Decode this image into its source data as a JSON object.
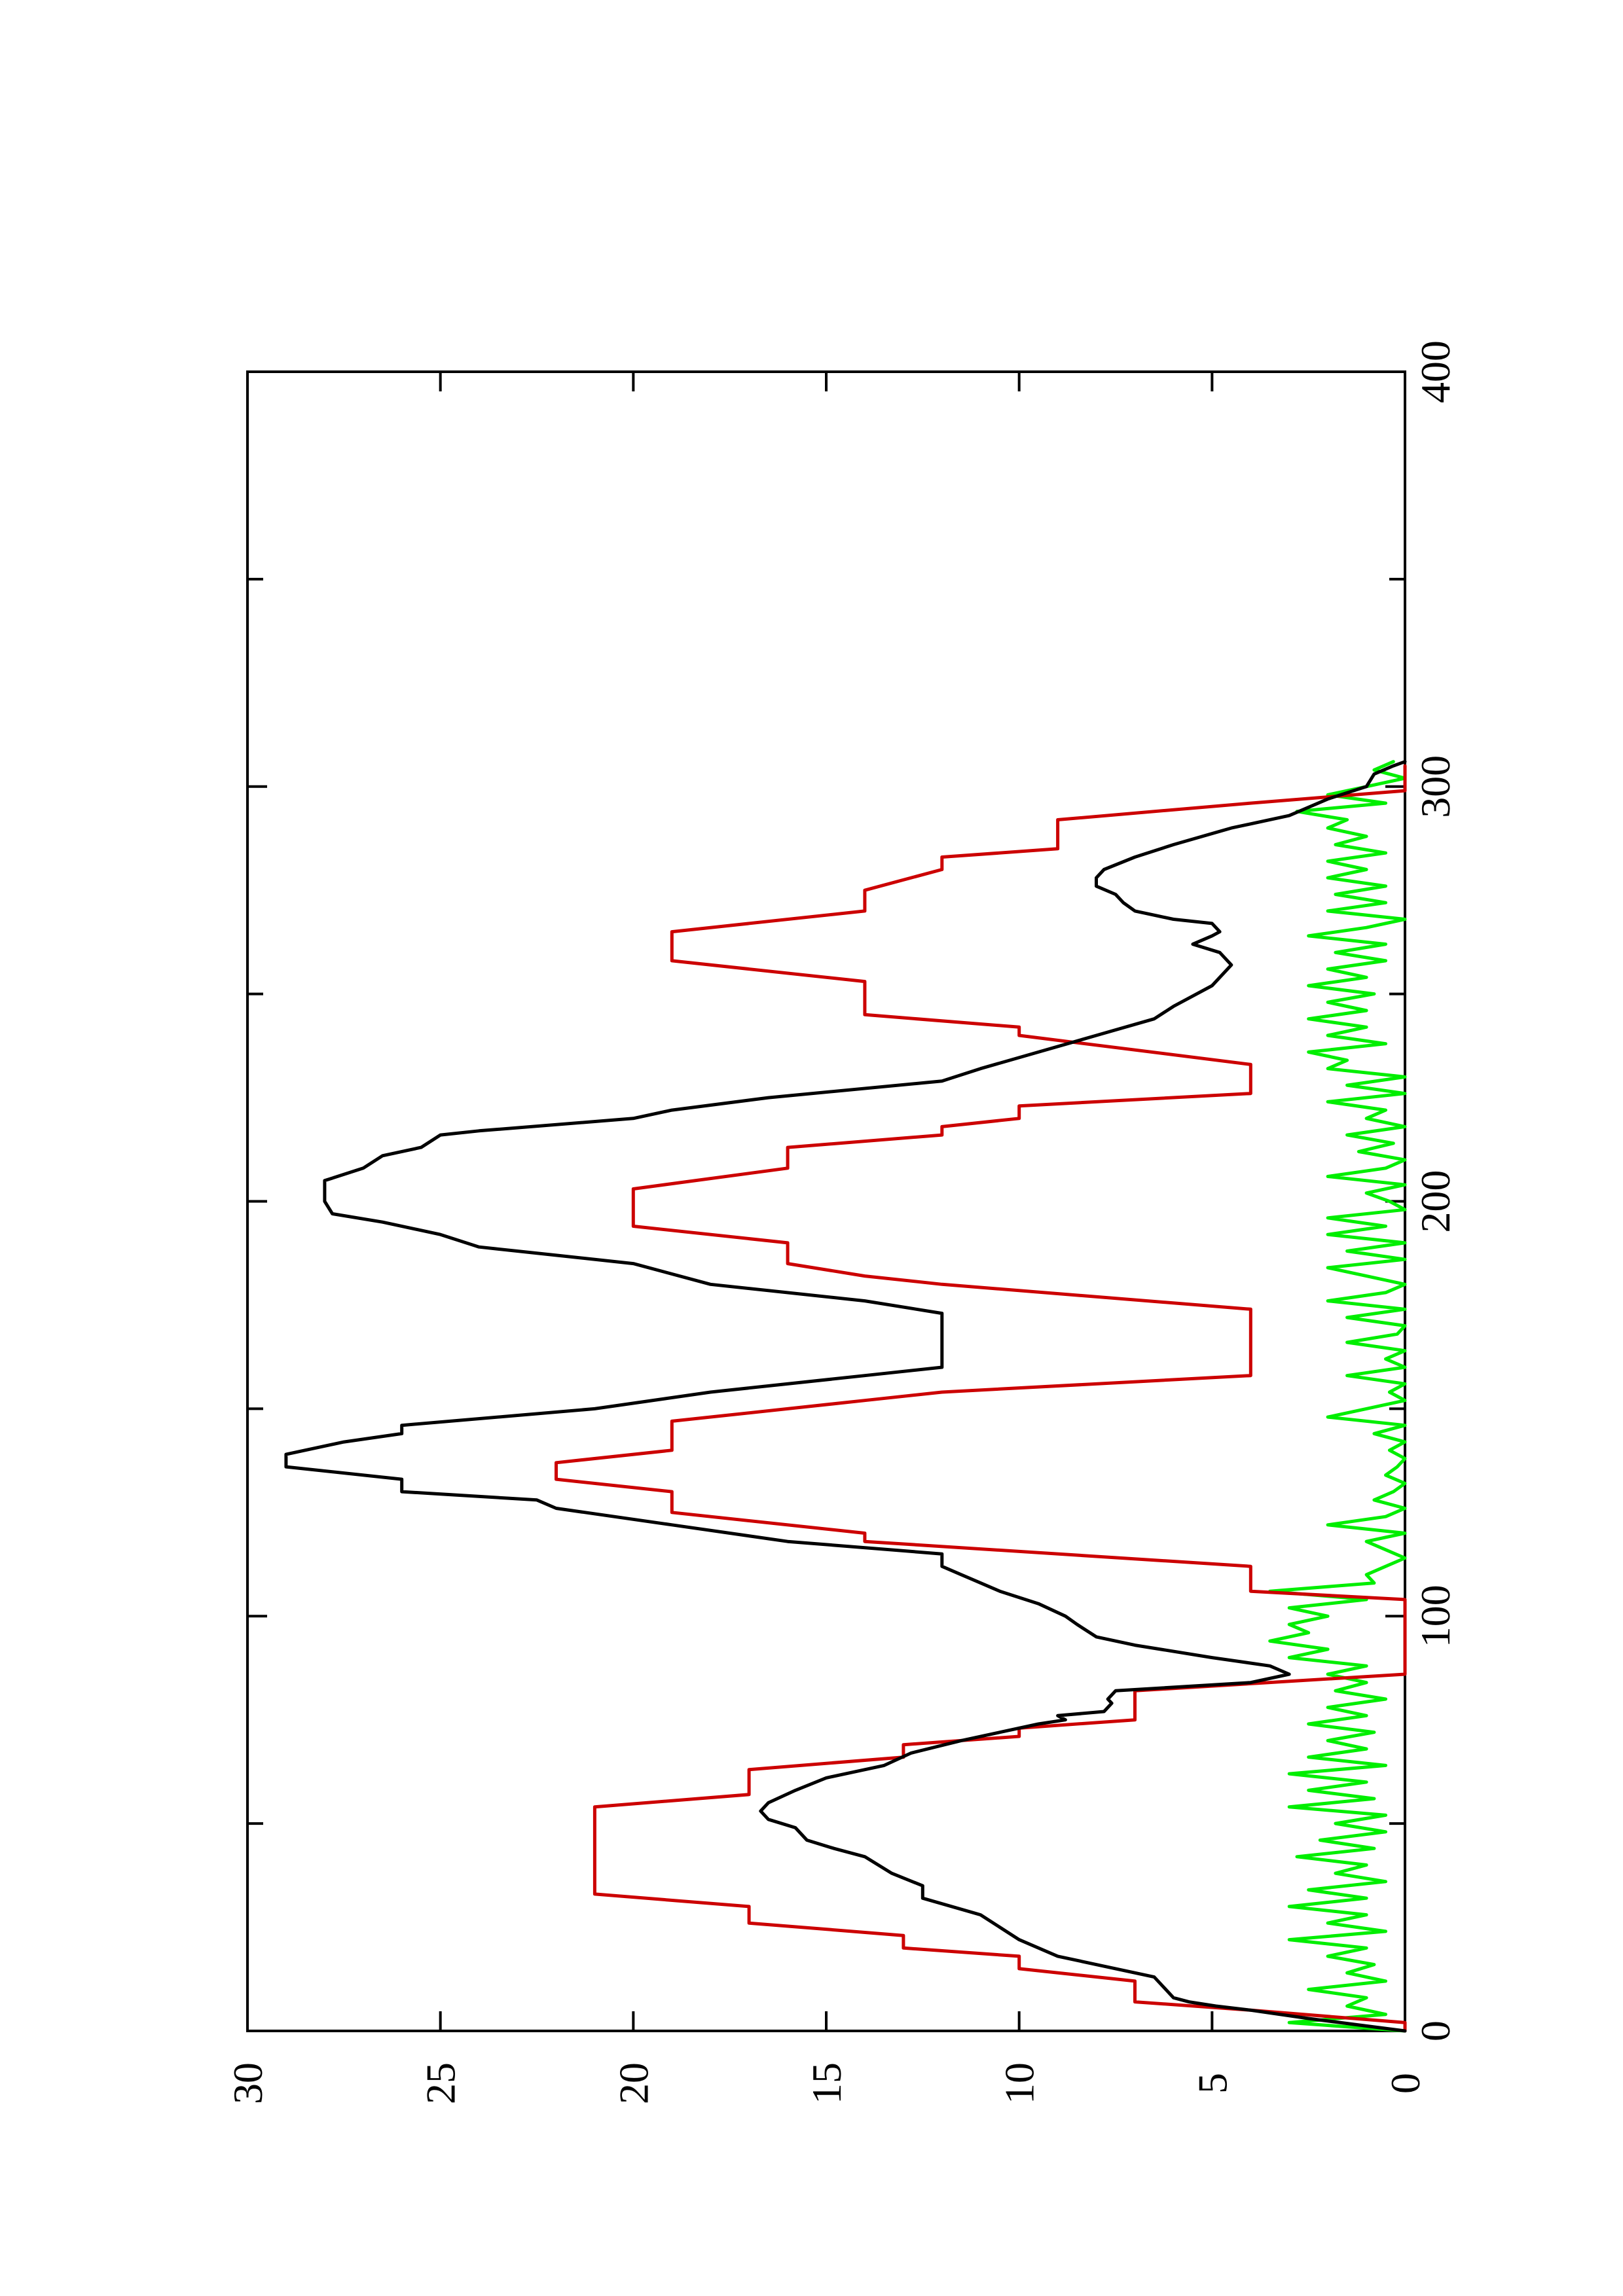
{
  "chart_data": {
    "type": "line",
    "orientation": "rotated-90-ccw",
    "xlim": [
      0,
      400
    ],
    "ylim": [
      0,
      30
    ],
    "x_ticks": [
      0,
      100,
      200,
      300,
      400
    ],
    "x_tick_labels": [
      "0",
      "100",
      "200",
      "300",
      "400"
    ],
    "y_ticks": [
      0,
      5,
      10,
      15,
      20,
      25,
      30
    ],
    "y_tick_labels": [
      "0",
      "5",
      "10",
      "15",
      "20",
      "25",
      "30"
    ],
    "grid": false,
    "legend": "none",
    "series": [
      {
        "color": "#cc0000",
        "points": [
          [
            0,
            0
          ],
          [
            2,
            0
          ],
          [
            5,
            4
          ],
          [
            7,
            7
          ],
          [
            12,
            7
          ],
          [
            15,
            10
          ],
          [
            18,
            10
          ],
          [
            20,
            13
          ],
          [
            23,
            13
          ],
          [
            26,
            17
          ],
          [
            30,
            17
          ],
          [
            33,
            21
          ],
          [
            54,
            21
          ],
          [
            57,
            17
          ],
          [
            63,
            17
          ],
          [
            66,
            13
          ],
          [
            69,
            13
          ],
          [
            71,
            10
          ],
          [
            73,
            10
          ],
          [
            75,
            7
          ],
          [
            82,
            7
          ],
          [
            86,
            0
          ],
          [
            104,
            0
          ],
          [
            106,
            4
          ],
          [
            112,
            4
          ],
          [
            118,
            14
          ],
          [
            120,
            14
          ],
          [
            125,
            19
          ],
          [
            130,
            19
          ],
          [
            133,
            22
          ],
          [
            137,
            22
          ],
          [
            140,
            19
          ],
          [
            147,
            19
          ],
          [
            152,
            14
          ],
          [
            154,
            12
          ],
          [
            158,
            4
          ],
          [
            174,
            4
          ],
          [
            180,
            12
          ],
          [
            182,
            14
          ],
          [
            185,
            16
          ],
          [
            190,
            16
          ],
          [
            194,
            20
          ],
          [
            203,
            20
          ],
          [
            208,
            16
          ],
          [
            213,
            16
          ],
          [
            216,
            12
          ],
          [
            218,
            12
          ],
          [
            220,
            10
          ],
          [
            223,
            10
          ],
          [
            226,
            4
          ],
          [
            233,
            4
          ],
          [
            240,
            10
          ],
          [
            242,
            10
          ],
          [
            245,
            14
          ],
          [
            253,
            14
          ],
          [
            258,
            19
          ],
          [
            265,
            19
          ],
          [
            270,
            14
          ],
          [
            275,
            14
          ],
          [
            280,
            12
          ],
          [
            283,
            12
          ],
          [
            285,
            9
          ],
          [
            292,
            9
          ],
          [
            296,
            4
          ],
          [
            299,
            0
          ],
          [
            305,
            0
          ]
        ]
      },
      {
        "color": "#000000",
        "points": [
          [
            0,
            0
          ],
          [
            3,
            2.5
          ],
          [
            5,
            4
          ],
          [
            6,
            4.9
          ],
          [
            7,
            5.6
          ],
          [
            8,
            6
          ],
          [
            10,
            6.2
          ],
          [
            13,
            6.5
          ],
          [
            15,
            7.5
          ],
          [
            18,
            9
          ],
          [
            22,
            10
          ],
          [
            25,
            10.5
          ],
          [
            28,
            11
          ],
          [
            32,
            12.5
          ],
          [
            35,
            12.5
          ],
          [
            38,
            13.3
          ],
          [
            42,
            14
          ],
          [
            44,
            14.8
          ],
          [
            46,
            15.5
          ],
          [
            49,
            15.8
          ],
          [
            51,
            16.5
          ],
          [
            53,
            16.7
          ],
          [
            55,
            16.5
          ],
          [
            58,
            15.8
          ],
          [
            61,
            15
          ],
          [
            64,
            13.5
          ],
          [
            67,
            12.8
          ],
          [
            70,
            11.5
          ],
          [
            72,
            10.5
          ],
          [
            74,
            9.5
          ],
          [
            75,
            8.8
          ],
          [
            76,
            9
          ],
          [
            77,
            7.8
          ],
          [
            79,
            7.6
          ],
          [
            80,
            7.7
          ],
          [
            82,
            7.5
          ],
          [
            84,
            4
          ],
          [
            86,
            3
          ],
          [
            88,
            3.5
          ],
          [
            90,
            5
          ],
          [
            93,
            7
          ],
          [
            95,
            8
          ],
          [
            98,
            8.5
          ],
          [
            100,
            8.8
          ],
          [
            103,
            9.5
          ],
          [
            106,
            10.5
          ],
          [
            110,
            11.5
          ],
          [
            112,
            12
          ],
          [
            115,
            12
          ],
          [
            118,
            16
          ],
          [
            122,
            19
          ],
          [
            126,
            22
          ],
          [
            128,
            22.5
          ],
          [
            130,
            26
          ],
          [
            133,
            26
          ],
          [
            136,
            29
          ],
          [
            139,
            29
          ],
          [
            142,
            27.5
          ],
          [
            144,
            26
          ],
          [
            146,
            26
          ],
          [
            150,
            21
          ],
          [
            154,
            18
          ],
          [
            158,
            14
          ],
          [
            160,
            12
          ],
          [
            165,
            12
          ],
          [
            170,
            12
          ],
          [
            173,
            12
          ],
          [
            176,
            14
          ],
          [
            180,
            18
          ],
          [
            185,
            20
          ],
          [
            187,
            22
          ],
          [
            189,
            24
          ],
          [
            192,
            25
          ],
          [
            195,
            26.5
          ],
          [
            197,
            27.8
          ],
          [
            200,
            28
          ],
          [
            205,
            28
          ],
          [
            208,
            27
          ],
          [
            211,
            26.5
          ],
          [
            213,
            25.5
          ],
          [
            216,
            25
          ],
          [
            217,
            24
          ],
          [
            220,
            20
          ],
          [
            222,
            19
          ],
          [
            225,
            16.5
          ],
          [
            229,
            12
          ],
          [
            232,
            11
          ],
          [
            236,
            9.5
          ],
          [
            240,
            8
          ],
          [
            244,
            6.5
          ],
          [
            247,
            6
          ],
          [
            252,
            5
          ],
          [
            257,
            4.5
          ],
          [
            260,
            4.8
          ],
          [
            262,
            5.5
          ],
          [
            264,
            5
          ],
          [
            265,
            4.8
          ],
          [
            267,
            5
          ],
          [
            268,
            6
          ],
          [
            270,
            7
          ],
          [
            272,
            7.3
          ],
          [
            274,
            7.5
          ],
          [
            276,
            8
          ],
          [
            278,
            8
          ],
          [
            280,
            7.8
          ],
          [
            283,
            7
          ],
          [
            286,
            6
          ],
          [
            290,
            4.5
          ],
          [
            293,
            3
          ],
          [
            297,
            2
          ],
          [
            300,
            1
          ],
          [
            303,
            0.8
          ],
          [
            305,
            0.3
          ],
          [
            306,
            0
          ]
        ]
      },
      {
        "color": "#00ee00",
        "points": [
          [
            0,
            0
          ],
          [
            2,
            3
          ],
          [
            4,
            0.5
          ],
          [
            6,
            1.5
          ],
          [
            8,
            1
          ],
          [
            10,
            2.5
          ],
          [
            12,
            0.5
          ],
          [
            14,
            1.5
          ],
          [
            16,
            0.8
          ],
          [
            18,
            2
          ],
          [
            20,
            1
          ],
          [
            22,
            3
          ],
          [
            24,
            0.5
          ],
          [
            26,
            2
          ],
          [
            28,
            1
          ],
          [
            30,
            3
          ],
          [
            32,
            1
          ],
          [
            34,
            2.5
          ],
          [
            36,
            0.5
          ],
          [
            38,
            1.8
          ],
          [
            40,
            1
          ],
          [
            42,
            2.8
          ],
          [
            44,
            0.8
          ],
          [
            46,
            2.2
          ],
          [
            48,
            0.5
          ],
          [
            50,
            1.8
          ],
          [
            52,
            0.5
          ],
          [
            54,
            3
          ],
          [
            56,
            0.8
          ],
          [
            58,
            2.5
          ],
          [
            60,
            1
          ],
          [
            62,
            3
          ],
          [
            64,
            0.5
          ],
          [
            66,
            2.5
          ],
          [
            68,
            1
          ],
          [
            70,
            2
          ],
          [
            72,
            0.8
          ],
          [
            74,
            2.5
          ],
          [
            76,
            1
          ],
          [
            78,
            2
          ],
          [
            80,
            0.5
          ],
          [
            82,
            1.8
          ],
          [
            84,
            1
          ],
          [
            86,
            2
          ],
          [
            88,
            1
          ],
          [
            90,
            3
          ],
          [
            92,
            2
          ],
          [
            94,
            3.5
          ],
          [
            96,
            2.5
          ],
          [
            98,
            3
          ],
          [
            100,
            2
          ],
          [
            102,
            3
          ],
          [
            104,
            1
          ],
          [
            106,
            3.5
          ],
          [
            108,
            0.8
          ],
          [
            110,
            1
          ],
          [
            112,
            0.5
          ],
          [
            114,
            0
          ],
          [
            116,
            0.5
          ],
          [
            118,
            1
          ],
          [
            120,
            0
          ],
          [
            122,
            2
          ],
          [
            124,
            0.5
          ],
          [
            126,
            0
          ],
          [
            128,
            0.8
          ],
          [
            130,
            0.3
          ],
          [
            132,
            0
          ],
          [
            134,
            0.5
          ],
          [
            136,
            0.2
          ],
          [
            138,
            0
          ],
          [
            140,
            0.4
          ],
          [
            142,
            0
          ],
          [
            144,
            0.8
          ],
          [
            146,
            0
          ],
          [
            148,
            2
          ],
          [
            150,
            1
          ],
          [
            152,
            0
          ],
          [
            154,
            0.4
          ],
          [
            156,
            0
          ],
          [
            158,
            1.5
          ],
          [
            160,
            0
          ],
          [
            162,
            0.5
          ],
          [
            164,
            0
          ],
          [
            166,
            1.5
          ],
          [
            168,
            0.2
          ],
          [
            170,
            0
          ],
          [
            172,
            1.5
          ],
          [
            174,
            0
          ],
          [
            176,
            2
          ],
          [
            178,
            0.5
          ],
          [
            180,
            0
          ],
          [
            182,
            1
          ],
          [
            184,
            2
          ],
          [
            186,
            0
          ],
          [
            188,
            1.5
          ],
          [
            190,
            0
          ],
          [
            192,
            2
          ],
          [
            194,
            0.5
          ],
          [
            196,
            2
          ],
          [
            198,
            0
          ],
          [
            200,
            0.4
          ],
          [
            202,
            1
          ],
          [
            204,
            0
          ],
          [
            206,
            2
          ],
          [
            208,
            0.5
          ],
          [
            210,
            0
          ],
          [
            212,
            1.2
          ],
          [
            214,
            0.3
          ],
          [
            216,
            1.5
          ],
          [
            218,
            0
          ],
          [
            220,
            1
          ],
          [
            222,
            0.5
          ],
          [
            224,
            2
          ],
          [
            226,
            0
          ],
          [
            228,
            1.5
          ],
          [
            230,
            0
          ],
          [
            232,
            2
          ],
          [
            234,
            1.5
          ],
          [
            236,
            2.5
          ],
          [
            238,
            0.5
          ],
          [
            240,
            2
          ],
          [
            242,
            1
          ],
          [
            244,
            2.5
          ],
          [
            246,
            1
          ],
          [
            248,
            2
          ],
          [
            250,
            0.8
          ],
          [
            252,
            2.5
          ],
          [
            254,
            1
          ],
          [
            256,
            2
          ],
          [
            258,
            0.5
          ],
          [
            260,
            1.8
          ],
          [
            262,
            0.5
          ],
          [
            264,
            2.5
          ],
          [
            266,
            1
          ],
          [
            268,
            0
          ],
          [
            270,
            2
          ],
          [
            272,
            0.5
          ],
          [
            274,
            1.8
          ],
          [
            276,
            0.5
          ],
          [
            278,
            2
          ],
          [
            280,
            1
          ],
          [
            282,
            2
          ],
          [
            284,
            0.5
          ],
          [
            286,
            1.8
          ],
          [
            288,
            1
          ],
          [
            290,
            2
          ],
          [
            292,
            1.5
          ],
          [
            294,
            2.8
          ],
          [
            296,
            0.5
          ],
          [
            298,
            2
          ],
          [
            300,
            1
          ],
          [
            302,
            0
          ],
          [
            304,
            0.8
          ],
          [
            306,
            0.3
          ]
        ]
      }
    ]
  }
}
